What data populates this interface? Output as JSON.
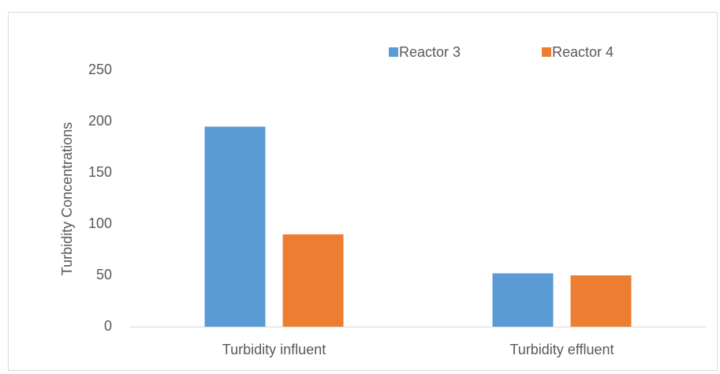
{
  "chart_data": {
    "type": "bar",
    "categories": [
      "Turbidity influent",
      "Turbidity effluent"
    ],
    "series": [
      {
        "name": "Reactor 3",
        "color": "#5b9bd5",
        "values": [
          195,
          52
        ]
      },
      {
        "name": "Reactor 4",
        "color": "#ed7d31",
        "values": [
          90,
          50
        ]
      }
    ],
    "y_label": "Turbidity Concentrations",
    "ylim": [
      0,
      250
    ],
    "yticks": [
      0,
      50,
      100,
      150,
      200,
      250
    ],
    "grid": false,
    "legend": "top"
  }
}
